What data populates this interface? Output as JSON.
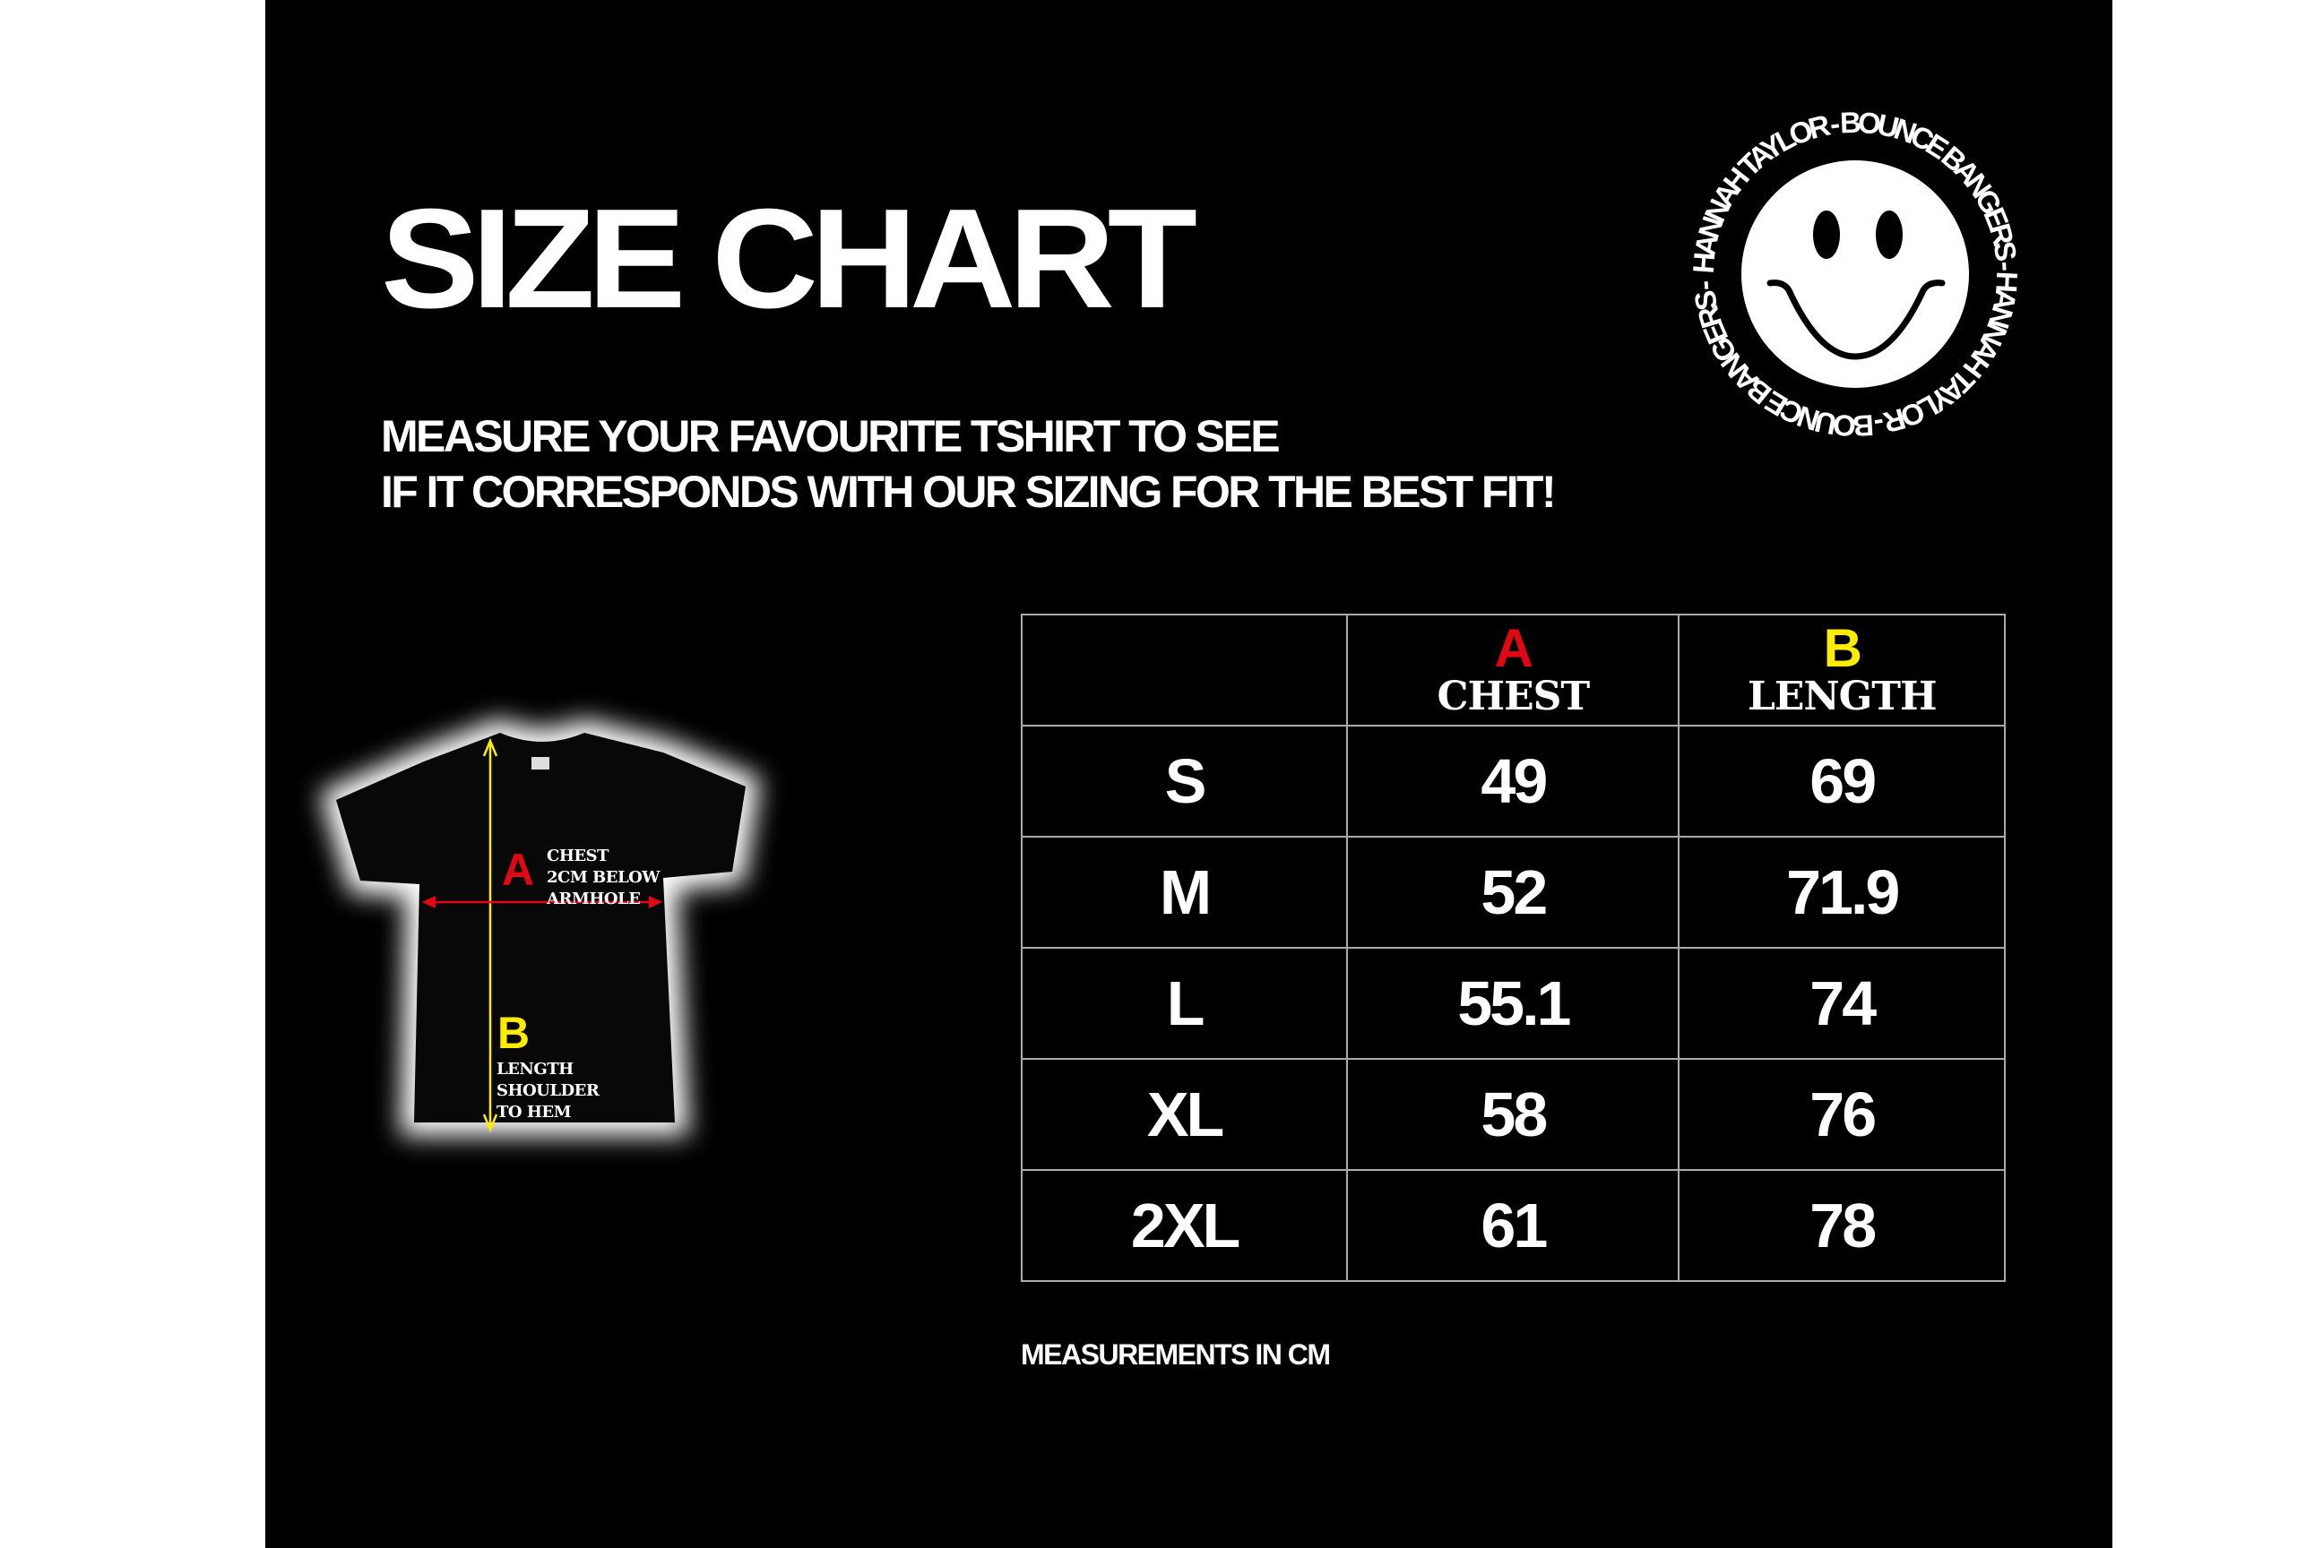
{
  "title": "SIZE CHART",
  "subtitle": {
    "line1": "MEASURE YOUR FAVOURITE TSHIRT TO SEE",
    "line2": "IF IT CORRESPONDS WITH OUR SIZING FOR THE BEST FIT!"
  },
  "logo": {
    "ring_text": "HANNAH TAYLOR - BOUNCE BANGERS - HANNAH TAYLOR - BOUNCE BANGERS - ",
    "icon": "smiley-face-icon"
  },
  "diagram": {
    "chest": {
      "letter": "A",
      "line1": "CHEST",
      "line2": "2CM BELOW",
      "line3": "ARMHOLE"
    },
    "length": {
      "letter": "B",
      "line1": "LENGTH",
      "line2": "SHOULDER",
      "line3": "TO HEM"
    }
  },
  "colors": {
    "background": "#000000",
    "accent_a": "#e30613",
    "accent_b": "#ffed00",
    "text": "#ffffff"
  },
  "table": {
    "columns": [
      {
        "letter": "",
        "name": ""
      },
      {
        "letter": "A",
        "name": "CHEST"
      },
      {
        "letter": "B",
        "name": "LENGTH"
      }
    ],
    "rows": [
      {
        "size": "S",
        "chest": "49",
        "length": "69"
      },
      {
        "size": "M",
        "chest": "52",
        "length": "71.9"
      },
      {
        "size": "L",
        "chest": "55.1",
        "length": "74"
      },
      {
        "size": "XL",
        "chest": "58",
        "length": "76"
      },
      {
        "size": "2XL",
        "chest": "61",
        "length": "78"
      }
    ]
  },
  "footnote": "MEASUREMENTS IN CM"
}
